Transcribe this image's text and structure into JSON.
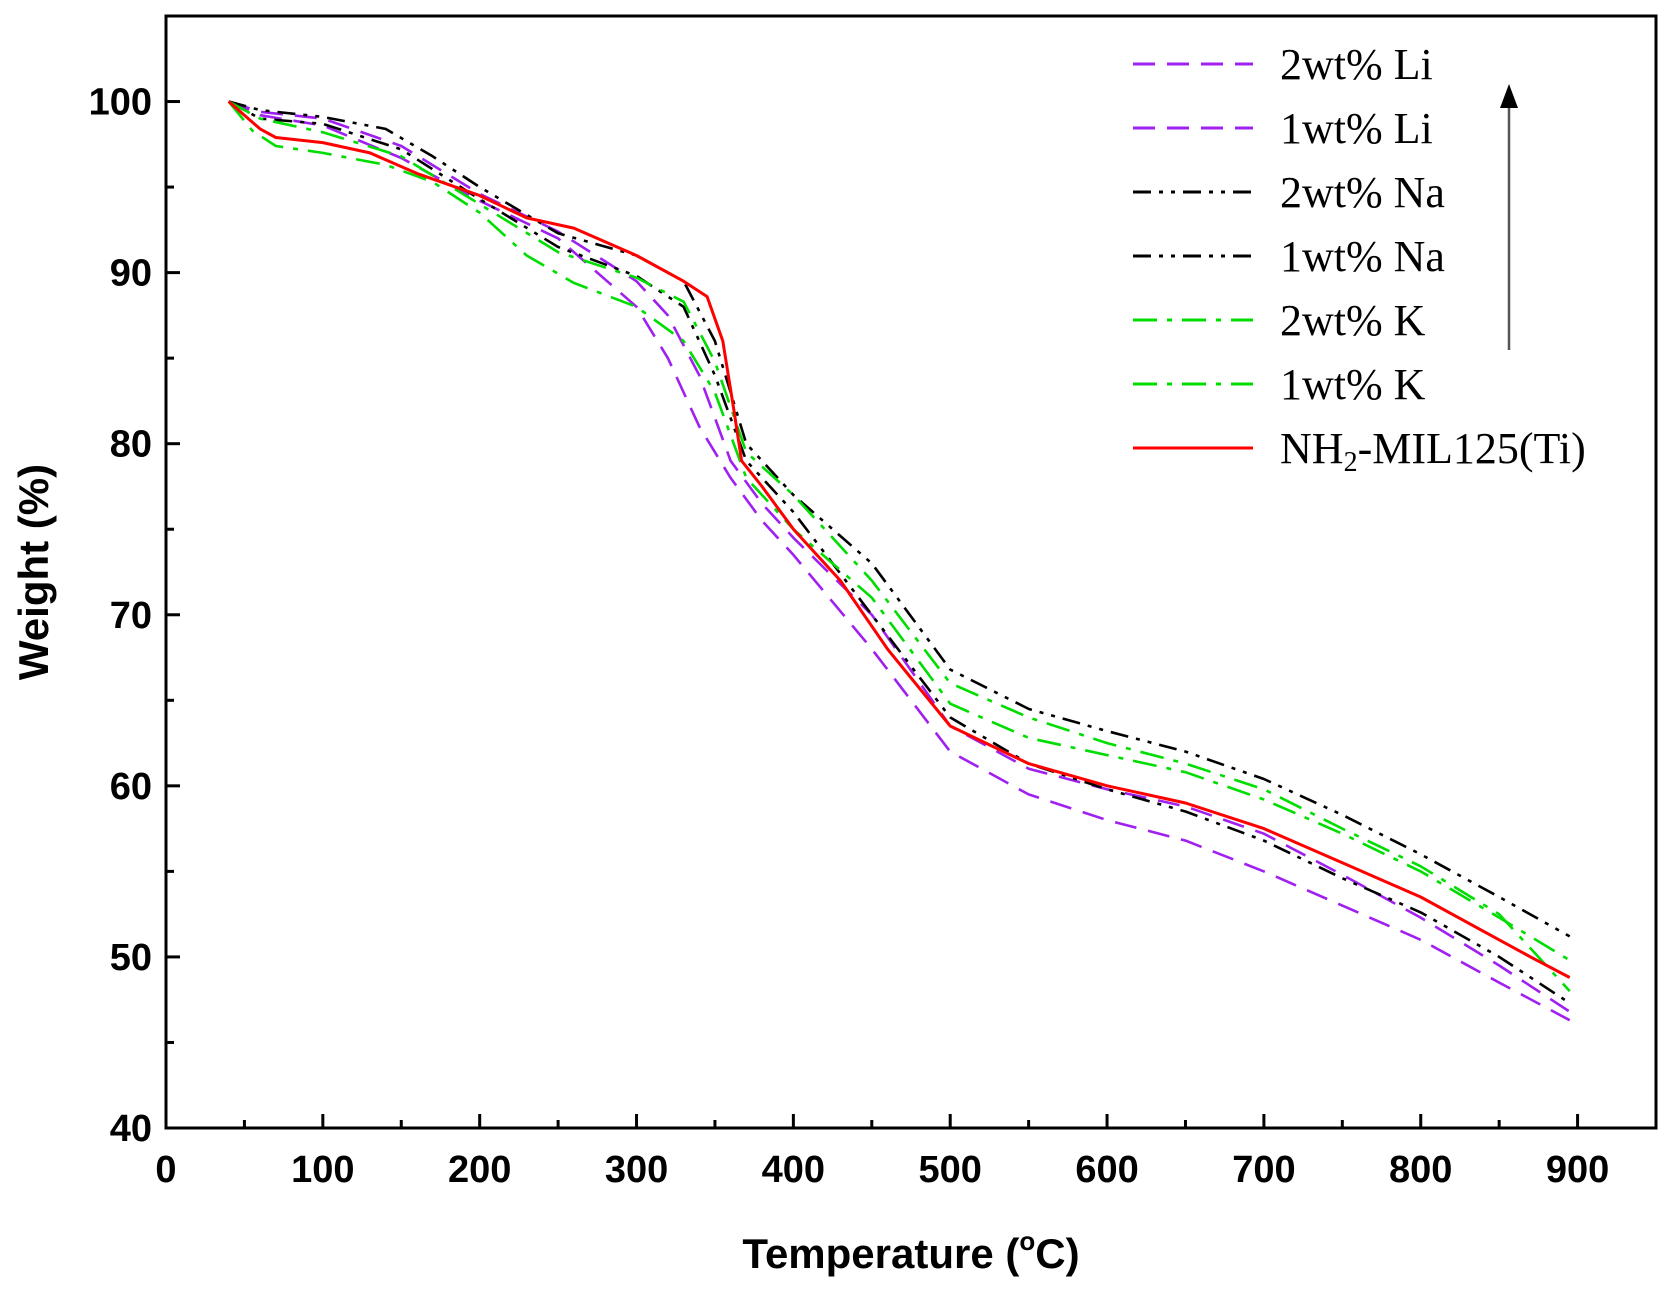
{
  "chart_data": {
    "type": "line",
    "title": "",
    "xlabel": "Temperature (",
    "xlabel_unit": "C)",
    "xlabel_degree": "o",
    "ylabel": "Weight (%)",
    "xlim": [
      0,
      950
    ],
    "ylim": [
      40,
      105
    ],
    "xticks": [
      0,
      100,
      200,
      300,
      400,
      500,
      600,
      700,
      800,
      900
    ],
    "yticks": [
      40,
      50,
      60,
      70,
      80,
      90,
      100
    ],
    "grid": false,
    "legend_position": "top-right",
    "legend_arrow": "up",
    "series": [
      {
        "name": "2wt% Li",
        "color": "#a020f0",
        "dash": "dash",
        "points": [
          [
            40,
            100
          ],
          [
            60,
            99.2
          ],
          [
            100,
            98.6
          ],
          [
            150,
            96.7
          ],
          [
            200,
            94.2
          ],
          [
            250,
            92
          ],
          [
            300,
            88
          ],
          [
            320,
            85
          ],
          [
            340,
            81
          ],
          [
            360,
            78
          ],
          [
            380,
            75.5
          ],
          [
            400,
            73.5
          ],
          [
            450,
            68
          ],
          [
            500,
            62
          ],
          [
            550,
            59.5
          ],
          [
            600,
            58
          ],
          [
            650,
            56.8
          ],
          [
            700,
            55
          ],
          [
            750,
            53
          ],
          [
            800,
            51
          ],
          [
            850,
            48.5
          ],
          [
            895,
            46.3
          ]
        ]
      },
      {
        "name": "1wt% Li",
        "color": "#a020f0",
        "dash": "dash",
        "points": [
          [
            40,
            100
          ],
          [
            60,
            99.4
          ],
          [
            100,
            99
          ],
          [
            150,
            97.4
          ],
          [
            200,
            94.6
          ],
          [
            250,
            92.4
          ],
          [
            300,
            89.5
          ],
          [
            320,
            87.5
          ],
          [
            340,
            84
          ],
          [
            360,
            79
          ],
          [
            380,
            76.5
          ],
          [
            400,
            74.5
          ],
          [
            450,
            70
          ],
          [
            500,
            63.5
          ],
          [
            550,
            61
          ],
          [
            600,
            59.8
          ],
          [
            650,
            58.8
          ],
          [
            700,
            57.2
          ],
          [
            750,
            54.8
          ],
          [
            800,
            52.3
          ],
          [
            850,
            49.5
          ],
          [
            895,
            46.8
          ]
        ]
      },
      {
        "name": "2wt% Na",
        "color": "#000000",
        "dash": "dashdotdot",
        "points": [
          [
            40,
            100
          ],
          [
            60,
            99.5
          ],
          [
            100,
            99.1
          ],
          [
            140,
            98.4
          ],
          [
            170,
            96.8
          ],
          [
            200,
            95
          ],
          [
            250,
            92.3
          ],
          [
            300,
            91
          ],
          [
            330,
            89.5
          ],
          [
            350,
            86
          ],
          [
            370,
            80
          ],
          [
            400,
            77
          ],
          [
            450,
            73
          ],
          [
            500,
            66.8
          ],
          [
            550,
            64.5
          ],
          [
            600,
            63.2
          ],
          [
            650,
            62
          ],
          [
            700,
            60.4
          ],
          [
            750,
            58.3
          ],
          [
            800,
            56
          ],
          [
            850,
            53.5
          ],
          [
            895,
            51.2
          ]
        ]
      },
      {
        "name": "1wt% Na",
        "color": "#000000",
        "dash": "dashdotdot",
        "points": [
          [
            40,
            100
          ],
          [
            60,
            99
          ],
          [
            100,
            98.7
          ],
          [
            150,
            97.2
          ],
          [
            200,
            94.3
          ],
          [
            250,
            91.5
          ],
          [
            300,
            89.8
          ],
          [
            330,
            88
          ],
          [
            350,
            84
          ],
          [
            370,
            79
          ],
          [
            400,
            76
          ],
          [
            450,
            70
          ],
          [
            500,
            64
          ],
          [
            550,
            61.3
          ],
          [
            600,
            59.8
          ],
          [
            650,
            58.5
          ],
          [
            700,
            56.8
          ],
          [
            750,
            54.6
          ],
          [
            800,
            52.6
          ],
          [
            850,
            50
          ],
          [
            895,
            47.3
          ]
        ]
      },
      {
        "name": "2wt% K",
        "color": "#00dd00",
        "dash": "dashdot",
        "points": [
          [
            40,
            100
          ],
          [
            55,
            98.3
          ],
          [
            70,
            97.4
          ],
          [
            100,
            97
          ],
          [
            140,
            96.3
          ],
          [
            170,
            95.3
          ],
          [
            200,
            93.5
          ],
          [
            230,
            91
          ],
          [
            260,
            89.4
          ],
          [
            300,
            88
          ],
          [
            330,
            86
          ],
          [
            350,
            83
          ],
          [
            370,
            78
          ],
          [
            400,
            75
          ],
          [
            450,
            71
          ],
          [
            500,
            64.8
          ],
          [
            550,
            62.8
          ],
          [
            600,
            61.8
          ],
          [
            650,
            60.8
          ],
          [
            700,
            59.2
          ],
          [
            750,
            57.2
          ],
          [
            800,
            55
          ],
          [
            850,
            52.3
          ],
          [
            895,
            49.8
          ]
        ]
      },
      {
        "name": "1wt% K",
        "color": "#00dd00",
        "dash": "dashdot",
        "points": [
          [
            40,
            100
          ],
          [
            60,
            99
          ],
          [
            100,
            98.2
          ],
          [
            150,
            96.8
          ],
          [
            200,
            94
          ],
          [
            250,
            91.2
          ],
          [
            300,
            89.7
          ],
          [
            330,
            88.3
          ],
          [
            350,
            84.8
          ],
          [
            370,
            79.5
          ],
          [
            400,
            77
          ],
          [
            450,
            72
          ],
          [
            500,
            66
          ],
          [
            550,
            64
          ],
          [
            600,
            62.5
          ],
          [
            650,
            61.3
          ],
          [
            700,
            59.8
          ],
          [
            750,
            57.5
          ],
          [
            800,
            55.3
          ],
          [
            850,
            52.5
          ],
          [
            895,
            48
          ]
        ]
      },
      {
        "name": "NH2-MIL125(Ti)",
        "name_parts": [
          "NH",
          "2",
          "-MIL125(Ti)"
        ],
        "color": "#ff0000",
        "dash": "solid",
        "points": [
          [
            40,
            100
          ],
          [
            50,
            99.2
          ],
          [
            60,
            98.4
          ],
          [
            70,
            97.9
          ],
          [
            100,
            97.6
          ],
          [
            130,
            97
          ],
          [
            160,
            95.8
          ],
          [
            200,
            94.5
          ],
          [
            230,
            93.2
          ],
          [
            260,
            92.6
          ],
          [
            300,
            91
          ],
          [
            330,
            89.5
          ],
          [
            345,
            88.6
          ],
          [
            355,
            86
          ],
          [
            362,
            82
          ],
          [
            367,
            79
          ],
          [
            380,
            77.5
          ],
          [
            400,
            75
          ],
          [
            430,
            72
          ],
          [
            460,
            68
          ],
          [
            500,
            63.5
          ],
          [
            550,
            61.3
          ],
          [
            600,
            60
          ],
          [
            650,
            59
          ],
          [
            700,
            57.5
          ],
          [
            750,
            55.5
          ],
          [
            800,
            53.5
          ],
          [
            840,
            51.5
          ],
          [
            870,
            50
          ],
          [
            895,
            48.8
          ]
        ]
      }
    ]
  }
}
